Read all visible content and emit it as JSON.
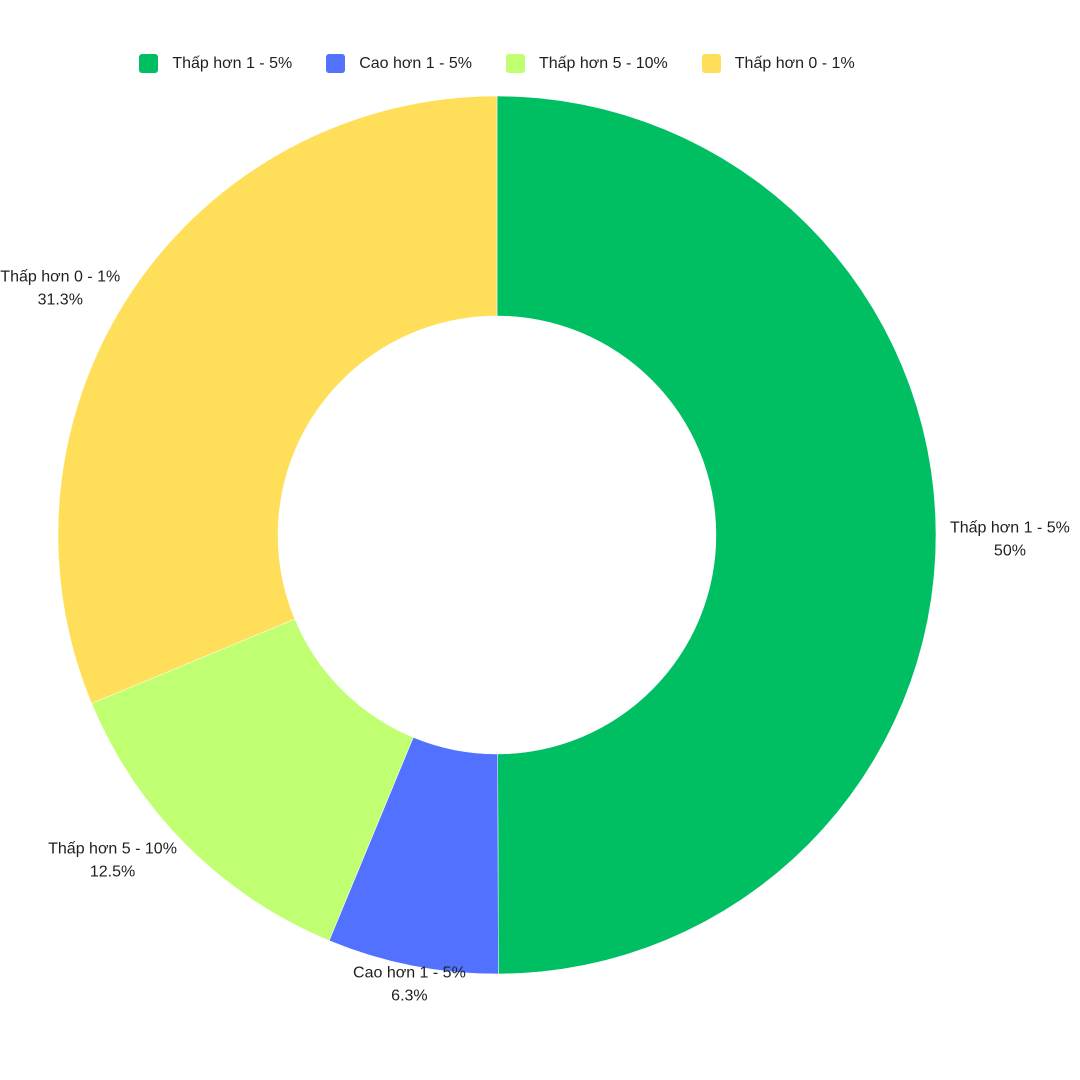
{
  "chart_data": {
    "type": "pie",
    "donut": true,
    "labels": [
      "Thấp hơn 1 - 5%",
      "Cao hơn 1 - 5%",
      "Thấp hơn 5 - 10%",
      "Thấp hơn 0 - 1%"
    ],
    "values": [
      50,
      6.3,
      12.5,
      31.3
    ],
    "value_labels": [
      "50%",
      "6.3%",
      "12.5%",
      "31.3%"
    ],
    "colors": [
      "#00bf63",
      "#5271ff",
      "#c1ff72",
      "#ffde59"
    ],
    "legend_position": "top",
    "start_angle": "12 o'clock",
    "direction": "clockwise"
  }
}
